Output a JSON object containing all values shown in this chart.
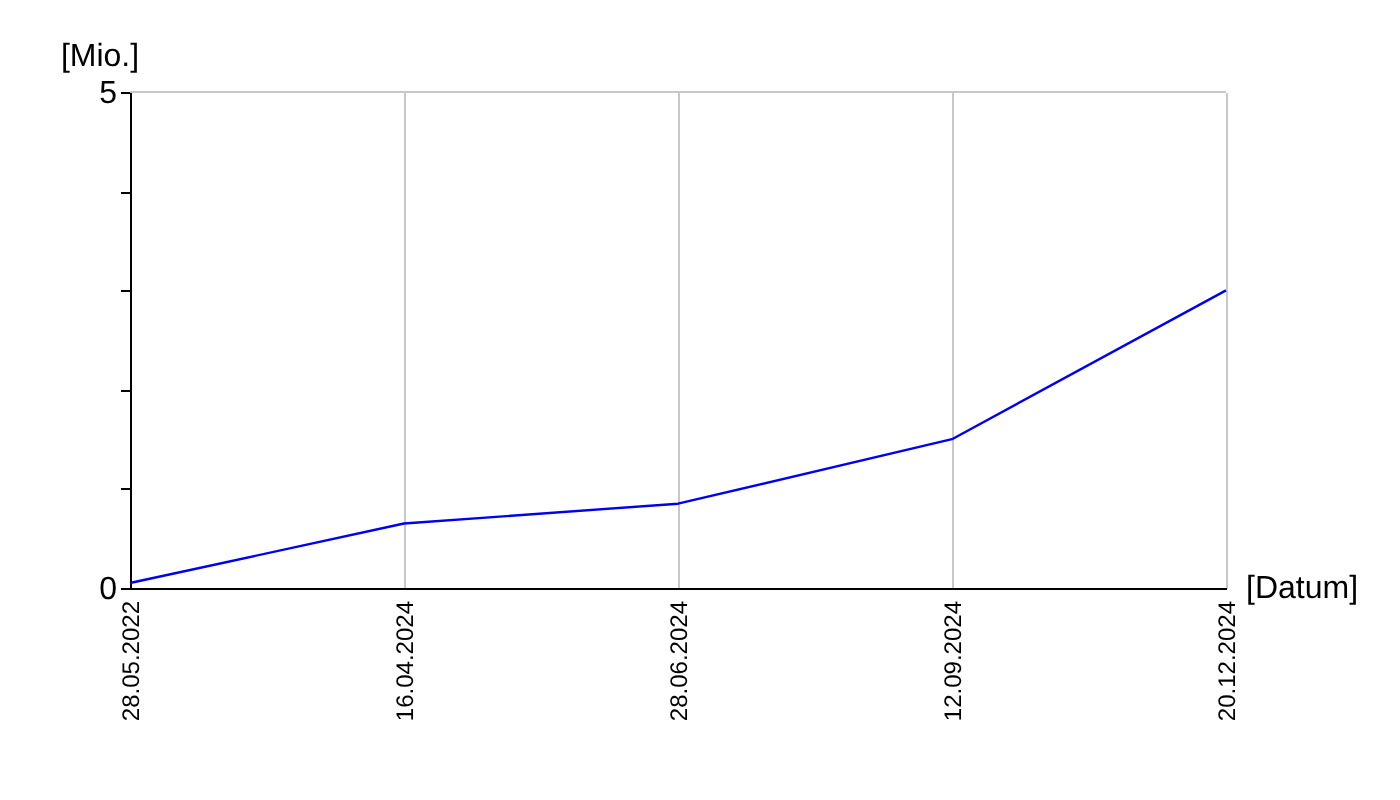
{
  "chart_data": {
    "type": "line",
    "xlabel": "[Datum]",
    "ylabel": "[Mio.]",
    "categories": [
      "28.05.2022",
      "16.04.2024",
      "28.06.2024",
      "12.09.2024",
      "20.12.2024"
    ],
    "series": [
      {
        "color": "#0000ee",
        "values": [
          0.05,
          0.65,
          0.85,
          1.5,
          3.0
        ]
      }
    ],
    "ylim": [
      0,
      5
    ],
    "yticks": [
      0,
      {
        "value": 1,
        "label": null
      },
      {
        "value": 2,
        "label": null
      },
      {
        "value": 3,
        "label": null
      },
      {
        "value": 4,
        "label": null
      },
      5
    ],
    "grid": "x",
    "marker": "none",
    "line_style": "solid"
  }
}
